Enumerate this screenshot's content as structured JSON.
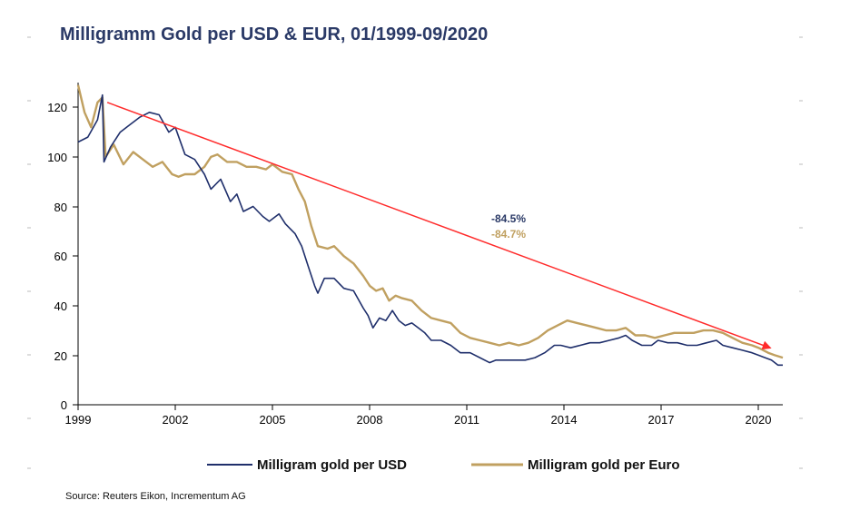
{
  "chart_data": {
    "type": "line",
    "title": "Milligramm Gold per USD & EUR, 01/1999-09/2020",
    "xlabel": "",
    "ylabel": "",
    "xlim": [
      1999.0,
      2020.75
    ],
    "ylim": [
      0,
      130
    ],
    "x_ticks": [
      "1999",
      "2002",
      "2005",
      "2008",
      "2011",
      "2014",
      "2017",
      "2020"
    ],
    "y_ticks": [
      "0",
      "20",
      "40",
      "60",
      "80",
      "100",
      "120"
    ],
    "series": [
      {
        "name": "Milligram gold per USD",
        "color": "#1f2f6b",
        "points": [
          [
            1999.0,
            106
          ],
          [
            1999.3,
            108
          ],
          [
            1999.6,
            115
          ],
          [
            1999.75,
            125
          ],
          [
            1999.8,
            98
          ],
          [
            2000.0,
            104
          ],
          [
            2000.3,
            110
          ],
          [
            2000.6,
            113
          ],
          [
            2000.9,
            116
          ],
          [
            2001.2,
            118
          ],
          [
            2001.5,
            117
          ],
          [
            2001.8,
            110
          ],
          [
            2002.0,
            112
          ],
          [
            2002.3,
            101
          ],
          [
            2002.6,
            99
          ],
          [
            2002.9,
            93
          ],
          [
            2003.1,
            87
          ],
          [
            2003.4,
            91
          ],
          [
            2003.7,
            82
          ],
          [
            2003.9,
            85
          ],
          [
            2004.1,
            78
          ],
          [
            2004.4,
            80
          ],
          [
            2004.7,
            76
          ],
          [
            2004.9,
            74
          ],
          [
            2005.2,
            77
          ],
          [
            2005.4,
            73
          ],
          [
            2005.7,
            69
          ],
          [
            2005.9,
            64
          ],
          [
            2006.1,
            56
          ],
          [
            2006.3,
            48
          ],
          [
            2006.4,
            45
          ],
          [
            2006.6,
            51
          ],
          [
            2006.9,
            51
          ],
          [
            2007.2,
            47
          ],
          [
            2007.5,
            46
          ],
          [
            2007.8,
            39
          ],
          [
            2007.95,
            36
          ],
          [
            2008.1,
            31
          ],
          [
            2008.3,
            35
          ],
          [
            2008.5,
            34
          ],
          [
            2008.7,
            38
          ],
          [
            2008.9,
            34
          ],
          [
            2009.1,
            32
          ],
          [
            2009.3,
            33
          ],
          [
            2009.5,
            31
          ],
          [
            2009.7,
            29
          ],
          [
            2009.9,
            26
          ],
          [
            2010.2,
            26
          ],
          [
            2010.5,
            24
          ],
          [
            2010.8,
            21
          ],
          [
            2011.1,
            21
          ],
          [
            2011.4,
            19
          ],
          [
            2011.7,
            17
          ],
          [
            2011.9,
            18
          ],
          [
            2012.2,
            18
          ],
          [
            2012.5,
            18
          ],
          [
            2012.8,
            18
          ],
          [
            2013.1,
            19
          ],
          [
            2013.4,
            21
          ],
          [
            2013.7,
            24
          ],
          [
            2013.9,
            24
          ],
          [
            2014.2,
            23
          ],
          [
            2014.5,
            24
          ],
          [
            2014.8,
            25
          ],
          [
            2015.1,
            25
          ],
          [
            2015.4,
            26
          ],
          [
            2015.7,
            27
          ],
          [
            2015.9,
            28
          ],
          [
            2016.1,
            26
          ],
          [
            2016.4,
            24
          ],
          [
            2016.7,
            24
          ],
          [
            2016.9,
            26
          ],
          [
            2017.2,
            25
          ],
          [
            2017.5,
            25
          ],
          [
            2017.8,
            24
          ],
          [
            2018.1,
            24
          ],
          [
            2018.4,
            25
          ],
          [
            2018.7,
            26
          ],
          [
            2018.9,
            24
          ],
          [
            2019.2,
            23
          ],
          [
            2019.5,
            22
          ],
          [
            2019.8,
            21
          ],
          [
            2020.0,
            20
          ],
          [
            2020.2,
            19
          ],
          [
            2020.4,
            18
          ],
          [
            2020.6,
            16
          ],
          [
            2020.75,
            16
          ]
        ]
      },
      {
        "name": "Milligram gold per Euro",
        "color": "#c0a060",
        "points": [
          [
            1999.0,
            129
          ],
          [
            1999.2,
            118
          ],
          [
            1999.4,
            112
          ],
          [
            1999.6,
            122
          ],
          [
            1999.75,
            124
          ],
          [
            1999.85,
            100
          ],
          [
            2000.1,
            105
          ],
          [
            2000.4,
            97
          ],
          [
            2000.7,
            102
          ],
          [
            2001.0,
            99
          ],
          [
            2001.3,
            96
          ],
          [
            2001.6,
            98
          ],
          [
            2001.9,
            93
          ],
          [
            2002.1,
            92
          ],
          [
            2002.3,
            93
          ],
          [
            2002.6,
            93
          ],
          [
            2002.9,
            96
          ],
          [
            2003.1,
            100
          ],
          [
            2003.3,
            101
          ],
          [
            2003.6,
            98
          ],
          [
            2003.9,
            98
          ],
          [
            2004.2,
            96
          ],
          [
            2004.5,
            96
          ],
          [
            2004.8,
            95
          ],
          [
            2005.0,
            97
          ],
          [
            2005.3,
            94
          ],
          [
            2005.6,
            93
          ],
          [
            2005.8,
            87
          ],
          [
            2006.0,
            82
          ],
          [
            2006.2,
            72
          ],
          [
            2006.4,
            64
          ],
          [
            2006.7,
            63
          ],
          [
            2006.9,
            64
          ],
          [
            2007.2,
            60
          ],
          [
            2007.5,
            57
          ],
          [
            2007.8,
            52
          ],
          [
            2008.0,
            48
          ],
          [
            2008.2,
            46
          ],
          [
            2008.4,
            47
          ],
          [
            2008.6,
            42
          ],
          [
            2008.8,
            44
          ],
          [
            2009.0,
            43
          ],
          [
            2009.3,
            42
          ],
          [
            2009.6,
            38
          ],
          [
            2009.9,
            35
          ],
          [
            2010.2,
            34
          ],
          [
            2010.5,
            33
          ],
          [
            2010.8,
            29
          ],
          [
            2011.1,
            27
          ],
          [
            2011.4,
            26
          ],
          [
            2011.7,
            25
          ],
          [
            2012.0,
            24
          ],
          [
            2012.3,
            25
          ],
          [
            2012.6,
            24
          ],
          [
            2012.9,
            25
          ],
          [
            2013.2,
            27
          ],
          [
            2013.5,
            30
          ],
          [
            2013.8,
            32
          ],
          [
            2014.1,
            34
          ],
          [
            2014.4,
            33
          ],
          [
            2014.7,
            32
          ],
          [
            2015.0,
            31
          ],
          [
            2015.3,
            30
          ],
          [
            2015.6,
            30
          ],
          [
            2015.9,
            31
          ],
          [
            2016.2,
            28
          ],
          [
            2016.5,
            28
          ],
          [
            2016.8,
            27
          ],
          [
            2017.1,
            28
          ],
          [
            2017.4,
            29
          ],
          [
            2017.7,
            29
          ],
          [
            2018.0,
            29
          ],
          [
            2018.3,
            30
          ],
          [
            2018.6,
            30
          ],
          [
            2018.9,
            29
          ],
          [
            2019.2,
            27
          ],
          [
            2019.5,
            25
          ],
          [
            2019.8,
            24
          ],
          [
            2020.0,
            23
          ],
          [
            2020.3,
            21
          ],
          [
            2020.5,
            20
          ],
          [
            2020.75,
            19
          ]
        ]
      }
    ],
    "annotations": [
      {
        "text": "-84.5%",
        "color": "#2b3a67"
      },
      {
        "text": "-84.7%",
        "color": "#c0a060"
      }
    ],
    "trend_arrow": {
      "from": [
        1999.9,
        122
      ],
      "to": [
        2020.35,
        23
      ],
      "color": "#ff2b2b"
    },
    "legend_position": "bottom",
    "source": "Source: Reuters Eikon, Incrementum AG"
  }
}
